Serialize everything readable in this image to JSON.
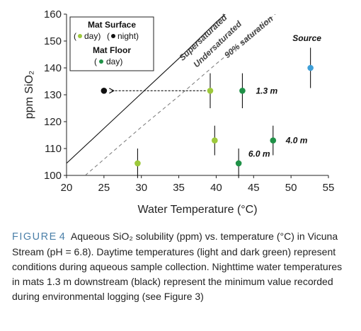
{
  "chart_data": {
    "type": "scatter",
    "xlabel": "Water Temperature (°C)",
    "ylabel": "ppm SiO₂",
    "xlim": [
      20,
      55
    ],
    "ylim": [
      100,
      160
    ],
    "xticks": [
      20,
      25,
      30,
      35,
      40,
      45,
      50,
      55
    ],
    "yticks": [
      100,
      110,
      120,
      130,
      140,
      150,
      160
    ],
    "grid": false,
    "legend": {
      "placement": "top-left",
      "surface_title": "Mat Surface",
      "surface_day": "day)",
      "surface_night": "night)",
      "floor_title": "Mat Floor",
      "floor_day": "day)"
    },
    "colors": {
      "surface_day": "#9dc93b",
      "floor_day": "#1f9147",
      "night": "#111111",
      "source": "#3e9fd8",
      "error_bar": "#111111",
      "saturation_curve": "#111111",
      "ninety_curve": "#777777"
    },
    "curves": [
      {
        "label": "Supersaturated",
        "points": [
          [
            20,
            104.5
          ],
          [
            25,
            117.5
          ],
          [
            30,
            130.5
          ],
          [
            35,
            143.5
          ],
          [
            40,
            157
          ],
          [
            41.2,
            160
          ]
        ]
      },
      {
        "label": "Undersaturated",
        "points": []
      },
      {
        "label": "90% saturation",
        "points": [
          [
            22.5,
            100
          ],
          [
            25,
            106
          ],
          [
            30,
            118
          ],
          [
            35,
            129.5
          ],
          [
            40,
            141.5
          ],
          [
            45,
            153
          ],
          [
            47.9,
            160
          ]
        ]
      }
    ],
    "points": [
      {
        "group": "surface_day",
        "x": 29.5,
        "y": 104.5,
        "err": 5.5
      },
      {
        "group": "surface_day",
        "x": 39.2,
        "y": 131.5,
        "err": 6.5
      },
      {
        "group": "surface_day",
        "x": 39.8,
        "y": 113,
        "err": 5.5
      },
      {
        "group": "floor_day",
        "x": 43.5,
        "y": 131.5,
        "err": 6.5
      },
      {
        "group": "floor_day",
        "x": 43,
        "y": 104.5,
        "err": 5.5
      },
      {
        "group": "floor_day",
        "x": 47.6,
        "y": 113,
        "err": 5.5
      },
      {
        "group": "night",
        "x": 25,
        "y": 131.5,
        "err": 0
      },
      {
        "group": "source",
        "x": 52.6,
        "y": 140,
        "err": 7.5
      }
    ],
    "arrow": {
      "from": [
        38.6,
        131.5
      ],
      "to": [
        25.8,
        131.5
      ]
    },
    "annotations": [
      {
        "text": "1.3 m",
        "x": 45.3,
        "y": 131.5
      },
      {
        "text": "4.0 m",
        "x": 49.3,
        "y": 113
      },
      {
        "text": "6.0 m",
        "x": 44.3,
        "y": 108
      },
      {
        "text": "Source",
        "x": 50.2,
        "y": 151
      }
    ]
  },
  "caption": {
    "label": "FIGURE",
    "number": "4",
    "text": "Aqueous SiO₂ solubility (ppm) vs. temperature (°C) in Vicuna Stream (pH = 6.8). Daytime temperatures (light and dark green) represent conditions during aqueous sample collection. Nighttime water temperatures in mats 1.3 m downstream (black) represent the minimum value recorded during environmental logging (see Figure 3)"
  }
}
